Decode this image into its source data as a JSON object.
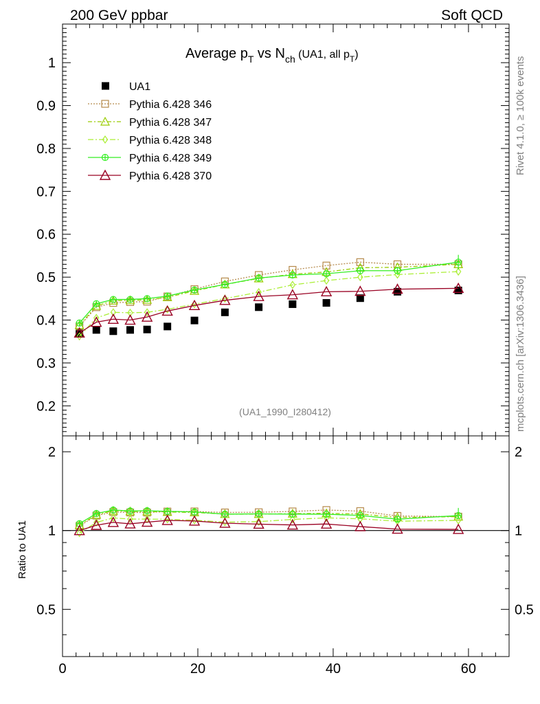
{
  "header": {
    "left": "200 GeV ppbar",
    "right": "Soft QCD"
  },
  "side": {
    "rivet": "Rivet 4.1.0, ≥ 100k events",
    "mcplots": "mcplots.cern.ch [arXiv:1306.3436]"
  },
  "title": {
    "main": "Average p",
    "sub_t": "T",
    "vs": " vs N",
    "sub_ch": "ch",
    "tail": " (UA1, all p",
    "tail_sub": "T",
    "tail_end": ")"
  },
  "analysis_id": "(UA1_1990_I280412)",
  "ratio_label": "Ratio to UA1",
  "colors": {
    "data": "#000000",
    "p346": "#b5894a",
    "p347": "#99cc00",
    "p348": "#aaee33",
    "p349": "#33ee22",
    "p370": "#990022"
  },
  "chart_data": {
    "type": "line",
    "xlim": [
      0,
      66
    ],
    "ylim": [
      0.13,
      1.09
    ],
    "ratio_ylim": [
      0.33,
      2.3
    ],
    "x_ticks": [
      "0",
      "20",
      "40",
      "60"
    ],
    "y_ticks": [
      "0.2",
      "0.3",
      "0.4",
      "0.5",
      "0.6",
      "0.7",
      "0.8",
      "0.9",
      "1"
    ],
    "ratio_ticks": [
      "0.5",
      "1",
      "2"
    ],
    "x": [
      2.5,
      5,
      7.5,
      10,
      12.5,
      15.5,
      19.5,
      24,
      29,
      34,
      39,
      44,
      49.5,
      58.5
    ],
    "series": [
      {
        "name": "UA1",
        "key": "data",
        "values": [
          0.37,
          0.377,
          0.374,
          0.377,
          0.378,
          0.385,
          0.399,
          0.418,
          0.43,
          0.437,
          0.44,
          0.451,
          0.466,
          0.469
        ]
      },
      {
        "name": "Pythia 6.428 346",
        "key": "p346",
        "values": [
          0.385,
          0.43,
          0.44,
          0.442,
          0.443,
          0.455,
          0.472,
          0.49,
          0.505,
          0.517,
          0.527,
          0.535,
          0.53,
          0.53
        ]
      },
      {
        "name": "Pythia 6.428 347",
        "key": "p347",
        "values": [
          0.388,
          0.433,
          0.445,
          0.446,
          0.447,
          0.453,
          0.468,
          0.483,
          0.497,
          0.507,
          0.512,
          0.522,
          0.523,
          0.53
        ]
      },
      {
        "name": "Pythia 6.428 348",
        "key": "p348",
        "values": [
          0.362,
          0.405,
          0.418,
          0.417,
          0.418,
          0.425,
          0.437,
          0.45,
          0.465,
          0.482,
          0.492,
          0.5,
          0.506,
          0.513
        ]
      },
      {
        "name": "Pythia 6.428 349",
        "key": "p349",
        "values": [
          0.393,
          0.438,
          0.448,
          0.448,
          0.45,
          0.456,
          0.47,
          0.483,
          0.498,
          0.505,
          0.508,
          0.515,
          0.515,
          0.535
        ]
      },
      {
        "name": "Pythia 6.428 370",
        "key": "p370",
        "values": [
          0.37,
          0.395,
          0.402,
          0.4,
          0.407,
          0.421,
          0.434,
          0.446,
          0.455,
          0.459,
          0.466,
          0.467,
          0.472,
          0.474
        ]
      }
    ]
  }
}
